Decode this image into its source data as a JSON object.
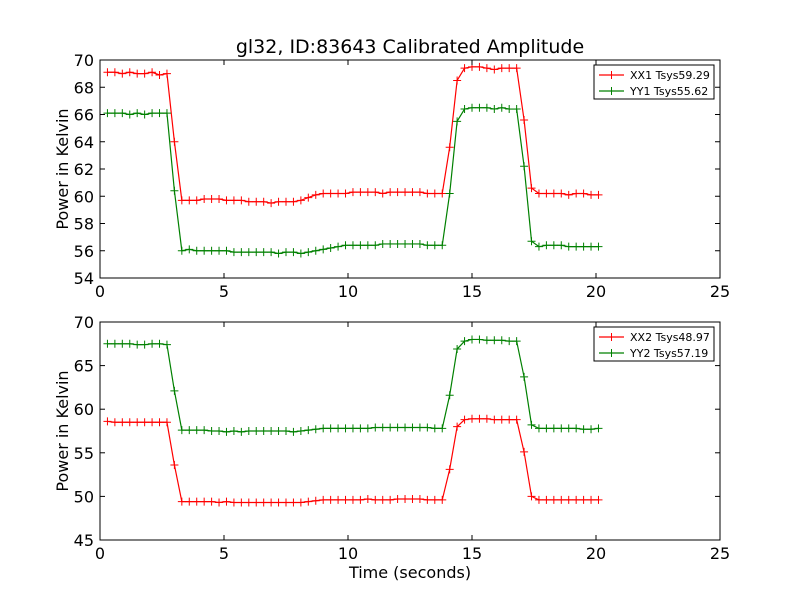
{
  "chart_data": [
    {
      "type": "line",
      "title": "gl32, ID:83643 Calibrated Amplitude",
      "xlabel": "",
      "ylabel": "Power in Kelvin",
      "xlim": [
        0,
        25
      ],
      "ylim": [
        54,
        70
      ],
      "xticks": [
        "0",
        "5",
        "10",
        "15",
        "20",
        "25"
      ],
      "yticks": [
        "54",
        "56",
        "58",
        "60",
        "62",
        "64",
        "66",
        "68",
        "70"
      ],
      "legend_position": "top-right",
      "grid": false,
      "x": [
        0.3,
        0.6,
        0.9,
        1.2,
        1.5,
        1.8,
        2.1,
        2.4,
        2.7,
        3.0,
        3.3,
        3.6,
        3.9,
        4.2,
        4.5,
        4.8,
        5.1,
        5.4,
        5.7,
        6.0,
        6.3,
        6.6,
        6.9,
        7.2,
        7.5,
        7.8,
        8.1,
        8.4,
        8.7,
        9.0,
        9.3,
        9.6,
        9.9,
        10.2,
        10.5,
        10.8,
        11.1,
        11.4,
        11.7,
        12.0,
        12.3,
        12.6,
        12.9,
        13.2,
        13.5,
        13.8,
        14.1,
        14.4,
        14.7,
        15.0,
        15.3,
        15.6,
        15.9,
        16.2,
        16.5,
        16.8,
        17.1,
        17.4,
        17.7,
        18.0,
        18.3,
        18.6,
        18.9,
        19.2,
        19.5,
        19.8,
        20.1
      ],
      "series": [
        {
          "name": "XX1 Tsys59.29",
          "color": "#ff0000",
          "values": [
            69.1,
            69.1,
            69.0,
            69.1,
            69.0,
            69.0,
            69.1,
            68.9,
            69.0,
            64.0,
            59.7,
            59.7,
            59.7,
            59.8,
            59.8,
            59.8,
            59.7,
            59.7,
            59.7,
            59.6,
            59.6,
            59.6,
            59.5,
            59.6,
            59.6,
            59.6,
            59.7,
            59.9,
            60.1,
            60.2,
            60.2,
            60.2,
            60.2,
            60.3,
            60.3,
            60.3,
            60.3,
            60.2,
            60.3,
            60.3,
            60.3,
            60.3,
            60.3,
            60.2,
            60.2,
            60.2,
            63.6,
            68.5,
            69.4,
            69.5,
            69.5,
            69.4,
            69.3,
            69.4,
            69.4,
            69.4,
            65.6,
            60.6,
            60.2,
            60.2,
            60.2,
            60.2,
            60.1,
            60.2,
            60.2,
            60.1,
            60.1
          ]
        },
        {
          "name": "YY1 Tsys55.62",
          "color": "#008000",
          "values": [
            66.1,
            66.1,
            66.1,
            66.0,
            66.1,
            66.0,
            66.1,
            66.1,
            66.1,
            60.4,
            56.0,
            56.1,
            56.0,
            56.0,
            56.0,
            56.0,
            56.0,
            55.9,
            55.9,
            55.9,
            55.9,
            55.9,
            55.9,
            55.8,
            55.9,
            55.9,
            55.8,
            55.9,
            56.0,
            56.1,
            56.2,
            56.3,
            56.4,
            56.4,
            56.4,
            56.4,
            56.4,
            56.5,
            56.5,
            56.5,
            56.5,
            56.5,
            56.5,
            56.4,
            56.4,
            56.4,
            60.2,
            65.5,
            66.4,
            66.5,
            66.5,
            66.5,
            66.4,
            66.5,
            66.4,
            66.4,
            62.2,
            56.7,
            56.3,
            56.4,
            56.4,
            56.4,
            56.3,
            56.3,
            56.3,
            56.3,
            56.3
          ]
        }
      ]
    },
    {
      "type": "line",
      "title": "",
      "xlabel": "Time (seconds)",
      "ylabel": "Power in Kelvin",
      "xlim": [
        0,
        25
      ],
      "ylim": [
        45,
        70
      ],
      "xticks": [
        "0",
        "5",
        "10",
        "15",
        "20",
        "25"
      ],
      "yticks": [
        "45",
        "50",
        "55",
        "60",
        "65",
        "70"
      ],
      "legend_position": "top-right",
      "grid": false,
      "x": [
        0.3,
        0.6,
        0.9,
        1.2,
        1.5,
        1.8,
        2.1,
        2.4,
        2.7,
        3.0,
        3.3,
        3.6,
        3.9,
        4.2,
        4.5,
        4.8,
        5.1,
        5.4,
        5.7,
        6.0,
        6.3,
        6.6,
        6.9,
        7.2,
        7.5,
        7.8,
        8.1,
        8.4,
        8.7,
        9.0,
        9.3,
        9.6,
        9.9,
        10.2,
        10.5,
        10.8,
        11.1,
        11.4,
        11.7,
        12.0,
        12.3,
        12.6,
        12.9,
        13.2,
        13.5,
        13.8,
        14.1,
        14.4,
        14.7,
        15.0,
        15.3,
        15.6,
        15.9,
        16.2,
        16.5,
        16.8,
        17.1,
        17.4,
        17.7,
        18.0,
        18.3,
        18.6,
        18.9,
        19.2,
        19.5,
        19.8,
        20.1
      ],
      "series": [
        {
          "name": "XX2 Tsys48.97",
          "color": "#ff0000",
          "values": [
            58.6,
            58.5,
            58.5,
            58.5,
            58.5,
            58.5,
            58.5,
            58.5,
            58.5,
            53.6,
            49.4,
            49.4,
            49.4,
            49.4,
            49.4,
            49.3,
            49.4,
            49.3,
            49.3,
            49.3,
            49.3,
            49.3,
            49.3,
            49.3,
            49.3,
            49.3,
            49.3,
            49.4,
            49.5,
            49.6,
            49.6,
            49.6,
            49.6,
            49.6,
            49.6,
            49.7,
            49.6,
            49.6,
            49.6,
            49.7,
            49.7,
            49.7,
            49.7,
            49.6,
            49.6,
            49.6,
            53.1,
            58.0,
            58.8,
            58.9,
            58.9,
            58.9,
            58.8,
            58.8,
            58.8,
            58.8,
            55.1,
            50.0,
            49.6,
            49.6,
            49.6,
            49.6,
            49.6,
            49.6,
            49.6,
            49.6,
            49.6
          ]
        },
        {
          "name": "YY2 Tsys57.19",
          "color": "#008000",
          "values": [
            67.5,
            67.5,
            67.5,
            67.5,
            67.4,
            67.4,
            67.5,
            67.5,
            67.4,
            62.1,
            57.6,
            57.6,
            57.6,
            57.6,
            57.5,
            57.5,
            57.4,
            57.5,
            57.4,
            57.5,
            57.5,
            57.5,
            57.5,
            57.5,
            57.5,
            57.4,
            57.5,
            57.6,
            57.7,
            57.8,
            57.8,
            57.8,
            57.8,
            57.8,
            57.8,
            57.8,
            57.9,
            57.9,
            57.9,
            57.9,
            57.9,
            57.9,
            57.9,
            57.9,
            57.8,
            57.8,
            61.6,
            66.9,
            67.8,
            68.0,
            68.0,
            67.9,
            67.9,
            67.9,
            67.8,
            67.8,
            63.7,
            58.2,
            57.8,
            57.8,
            57.8,
            57.8,
            57.8,
            57.8,
            57.7,
            57.7,
            57.8
          ]
        }
      ]
    }
  ]
}
